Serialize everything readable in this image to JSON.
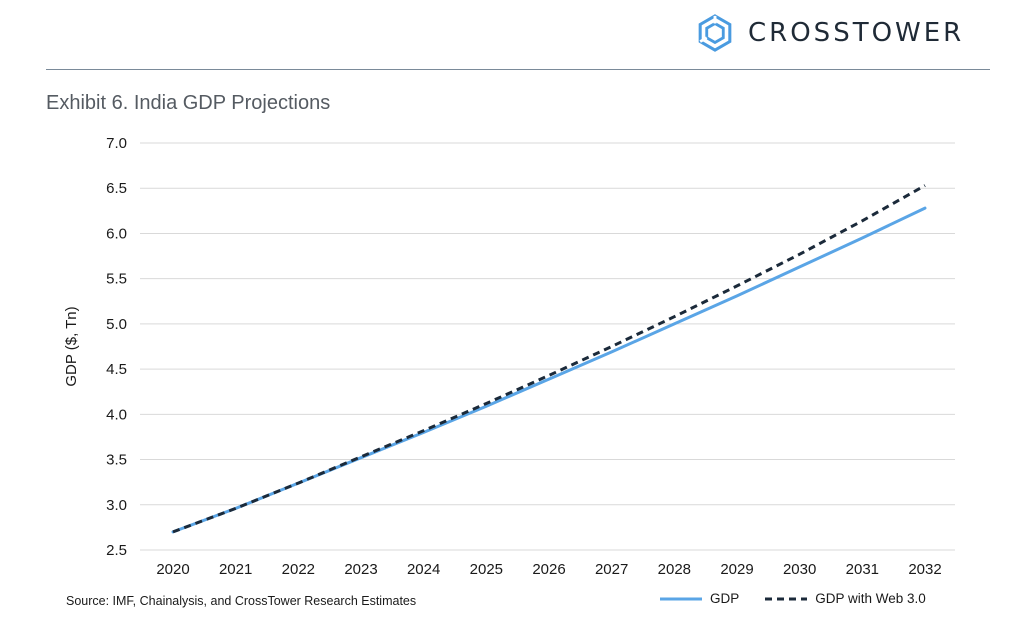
{
  "brand": {
    "name": "CROSSTOWER",
    "logo_icon": "hexagon-logo-icon",
    "logo_color": "#4a9be0"
  },
  "exhibit": {
    "title": "Exhibit 6. India GDP Projections"
  },
  "source": "Source: IMF, Chainalysis, and CrossTower Research Estimates",
  "chart_data": {
    "type": "line",
    "title": "",
    "xlabel": "",
    "ylabel": "GDP ($, Tn)",
    "x": [
      "2020",
      "2021",
      "2022",
      "2023",
      "2024",
      "2025",
      "2026",
      "2027",
      "2028",
      "2029",
      "2030",
      "2031",
      "2032"
    ],
    "ylim": [
      2.5,
      7.0
    ],
    "yticks": [
      "2.5",
      "3.0",
      "3.5",
      "4.0",
      "4.5",
      "5.0",
      "5.5",
      "6.0",
      "6.5",
      "7.0"
    ],
    "grid": true,
    "legend": "bottom-right",
    "series": [
      {
        "name": "GDP",
        "style": "solid",
        "color": "#5aa5e6",
        "values": [
          2.7,
          2.96,
          3.24,
          3.52,
          3.8,
          4.09,
          4.39,
          4.69,
          5.0,
          5.31,
          5.63,
          5.95,
          6.28
        ]
      },
      {
        "name": "GDP with Web 3.0",
        "style": "dashed",
        "color": "#1b2a3a",
        "values": [
          2.7,
          2.96,
          3.24,
          3.53,
          3.82,
          4.12,
          4.43,
          4.75,
          5.08,
          5.42,
          5.77,
          6.14,
          6.53
        ]
      }
    ]
  }
}
